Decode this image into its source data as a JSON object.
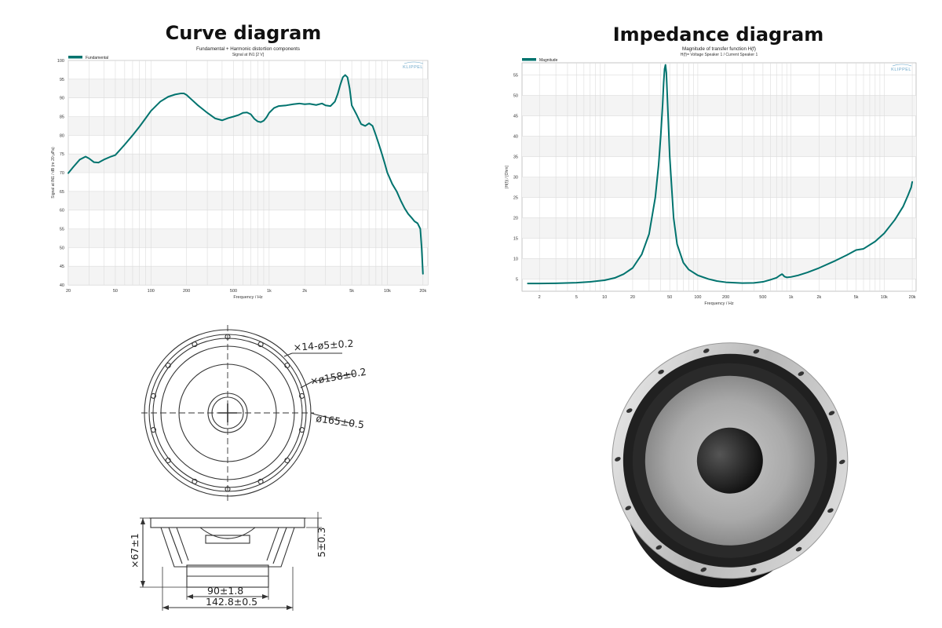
{
  "titles": {
    "curve": "Curve diagram",
    "impedance": "Impedance diagram"
  },
  "chart_data": [
    {
      "type": "line",
      "title": "Fundamental + Harmonic distortion components",
      "subtitle": "Signal at IN1 [2 V]",
      "xlabel": "Frequency / Hz",
      "ylabel": "Signal at IN1 / dB (re 20 µPa)",
      "xscale": "log",
      "xlim": [
        20,
        22000
      ],
      "ylim": [
        40,
        100
      ],
      "xticks": [
        {
          "v": 20,
          "label": "20"
        },
        {
          "v": 50,
          "label": "50"
        },
        {
          "v": 100,
          "label": "100"
        },
        {
          "v": 200,
          "label": "200"
        },
        {
          "v": 500,
          "label": "500"
        },
        {
          "v": 1000,
          "label": "1k"
        },
        {
          "v": 2000,
          "label": "2k"
        },
        {
          "v": 5000,
          "label": "5k"
        },
        {
          "v": 10000,
          "label": "10k"
        },
        {
          "v": 20000,
          "label": "20k"
        }
      ],
      "yticks": [
        40,
        45,
        50,
        55,
        60,
        65,
        70,
        75,
        80,
        85,
        90,
        95,
        100
      ],
      "grid": true,
      "legend_position": "top-left",
      "watermark": "KLIPPEL",
      "series": [
        {
          "name": "Fundamental",
          "color": "#00736e",
          "x": [
            20,
            22,
            25,
            28,
            30,
            33,
            36,
            40,
            45,
            50,
            60,
            70,
            80,
            90,
            100,
            120,
            140,
            160,
            180,
            190,
            200,
            220,
            250,
            300,
            350,
            400,
            450,
            500,
            550,
            600,
            650,
            700,
            750,
            800,
            850,
            900,
            950,
            1000,
            1100,
            1200,
            1400,
            1600,
            1800,
            2000,
            2200,
            2500,
            2800,
            3000,
            3300,
            3600,
            3800,
            4000,
            4200,
            4400,
            4600,
            4800,
            5000,
            5500,
            6000,
            6500,
            7000,
            7500,
            8000,
            8500,
            9000,
            9500,
            10000,
            11000,
            12000,
            13000,
            14000,
            15000,
            16000,
            17000,
            18000,
            19000,
            19500,
            20000
          ],
          "y": [
            69.9,
            71.5,
            73.5,
            74.3,
            73.8,
            72.8,
            72.7,
            73.5,
            74.2,
            74.7,
            77.5,
            80.0,
            82.3,
            84.5,
            86.5,
            89.0,
            90.3,
            90.9,
            91.2,
            91.2,
            90.8,
            89.6,
            88.0,
            86.0,
            84.5,
            84.0,
            84.6,
            85.0,
            85.4,
            86.0,
            86.1,
            85.6,
            84.4,
            83.7,
            83.5,
            83.9,
            84.8,
            86.0,
            87.3,
            87.8,
            88.0,
            88.3,
            88.5,
            88.3,
            88.4,
            88.1,
            88.5,
            88.0,
            87.8,
            89.0,
            91.0,
            93.5,
            95.5,
            96.1,
            95.5,
            92.5,
            88.0,
            85.5,
            83.0,
            82.5,
            83.2,
            82.5,
            80.0,
            77.5,
            75.0,
            72.5,
            70.0,
            67.0,
            65.0,
            62.5,
            60.5,
            59.0,
            58.0,
            57.0,
            56.5,
            55.0,
            50.0,
            43.0
          ]
        }
      ]
    },
    {
      "type": "line",
      "title": "Magnitude of transfer function H(f)",
      "subtitle": "H(f)= Voltage Speaker 1 / Current Speaker 1",
      "xlabel": "Frequency / Hz",
      "ylabel": "|H(f)| / [Ohm]",
      "xscale": "log",
      "xlim": [
        1.3,
        22000
      ],
      "ylim": [
        2,
        58
      ],
      "xticks": [
        {
          "v": 2,
          "label": "2"
        },
        {
          "v": 5,
          "label": "5"
        },
        {
          "v": 10,
          "label": "10"
        },
        {
          "v": 20,
          "label": "20"
        },
        {
          "v": 50,
          "label": "50"
        },
        {
          "v": 100,
          "label": "100"
        },
        {
          "v": 200,
          "label": "200"
        },
        {
          "v": 500,
          "label": "500"
        },
        {
          "v": 1000,
          "label": "1k"
        },
        {
          "v": 2000,
          "label": "2k"
        },
        {
          "v": 5000,
          "label": "5k"
        },
        {
          "v": 10000,
          "label": "10k"
        },
        {
          "v": 20000,
          "label": "20k"
        }
      ],
      "yticks": [
        5,
        10,
        15,
        20,
        25,
        30,
        35,
        40,
        45,
        50,
        55
      ],
      "grid": true,
      "legend_position": "top-left",
      "watermark": "KLIPPEL",
      "series": [
        {
          "name": "Magnitude",
          "color": "#00736e",
          "x": [
            1.5,
            2,
            3,
            5,
            7,
            10,
            13,
            16,
            20,
            25,
            30,
            35,
            38,
            40,
            42,
            43,
            44,
            45,
            46,
            48,
            50,
            55,
            60,
            70,
            80,
            100,
            130,
            160,
            200,
            300,
            400,
            500,
            600,
            700,
            750,
            800,
            820,
            850,
            900,
            1000,
            1200,
            1500,
            2000,
            3000,
            4000,
            5000,
            6000,
            8000,
            10000,
            13000,
            16000,
            18000,
            19500,
            20000
          ],
          "y": [
            3.9,
            3.9,
            3.95,
            4.1,
            4.3,
            4.7,
            5.3,
            6.2,
            7.7,
            11.0,
            16.0,
            25.0,
            33.0,
            40.0,
            48.0,
            53.0,
            56.5,
            57.5,
            55.5,
            45.0,
            35.0,
            20.0,
            13.5,
            9.0,
            7.3,
            5.9,
            5.0,
            4.5,
            4.2,
            4.0,
            4.05,
            4.3,
            4.8,
            5.3,
            5.8,
            6.2,
            6.0,
            5.6,
            5.4,
            5.5,
            5.9,
            6.6,
            7.7,
            9.5,
            10.9,
            12.1,
            12.4,
            14.2,
            16.2,
            19.5,
            22.8,
            25.5,
            27.5,
            28.8
          ]
        }
      ]
    }
  ],
  "drawing": {
    "dims": {
      "holes": "×14-ø5±0.2",
      "bolt_circle": "×ø158±0.2",
      "outer": "ø165±0.5",
      "height": "×67±1",
      "flange": "5±0.3",
      "magnet": "90±1.8",
      "basket": "142.8±0.5"
    }
  },
  "photo": {
    "alt": "speaker-woofer"
  }
}
